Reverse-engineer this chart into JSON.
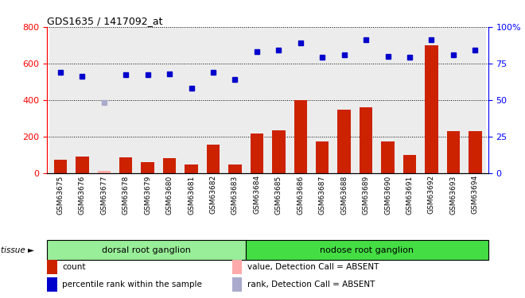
{
  "title": "GDS1635 / 1417092_at",
  "samples": [
    "GSM63675",
    "GSM63676",
    "GSM63677",
    "GSM63678",
    "GSM63679",
    "GSM63680",
    "GSM63681",
    "GSM63682",
    "GSM63683",
    "GSM63684",
    "GSM63685",
    "GSM63686",
    "GSM63687",
    "GSM63688",
    "GSM63689",
    "GSM63690",
    "GSM63691",
    "GSM63692",
    "GSM63693",
    "GSM63694"
  ],
  "bar_values": [
    70,
    90,
    12,
    85,
    60,
    80,
    45,
    155,
    45,
    215,
    235,
    400,
    170,
    345,
    360,
    170,
    100,
    700,
    230,
    230
  ],
  "bar_absent": [
    false,
    false,
    true,
    false,
    false,
    false,
    false,
    false,
    false,
    false,
    false,
    false,
    false,
    false,
    false,
    false,
    false,
    false,
    false,
    false
  ],
  "rank_values": [
    69,
    66,
    48,
    67,
    67,
    68,
    58,
    69,
    64,
    83,
    84,
    89,
    79,
    81,
    91,
    80,
    79,
    91,
    81,
    84
  ],
  "rank_absent": [
    false,
    false,
    true,
    false,
    false,
    false,
    false,
    false,
    false,
    false,
    false,
    false,
    false,
    false,
    false,
    false,
    false,
    false,
    false,
    false
  ],
  "groups": [
    {
      "name": "dorsal root ganglion",
      "start": 0,
      "end": 9
    },
    {
      "name": "nodose root ganglion",
      "start": 9,
      "end": 20
    }
  ],
  "group_colors": [
    "#99ee99",
    "#44dd44"
  ],
  "ylim_left": [
    0,
    800
  ],
  "ylim_right": [
    0,
    100
  ],
  "yticks_left": [
    0,
    200,
    400,
    600,
    800
  ],
  "yticks_right": [
    0,
    25,
    50,
    75,
    100
  ],
  "bar_color": "#cc2200",
  "bar_absent_color": "#ffaaaa",
  "rank_color": "#0000cc",
  "rank_absent_color": "#aaaacc",
  "legend_items": [
    {
      "label": "count",
      "color": "#cc2200"
    },
    {
      "label": "percentile rank within the sample",
      "color": "#0000cc"
    },
    {
      "label": "value, Detection Call = ABSENT",
      "color": "#ffaaaa"
    },
    {
      "label": "rank, Detection Call = ABSENT",
      "color": "#aaaacc"
    }
  ],
  "tissue_label": "tissue",
  "background_color": "#ffffff",
  "plot_bg_color": "#ffffff"
}
